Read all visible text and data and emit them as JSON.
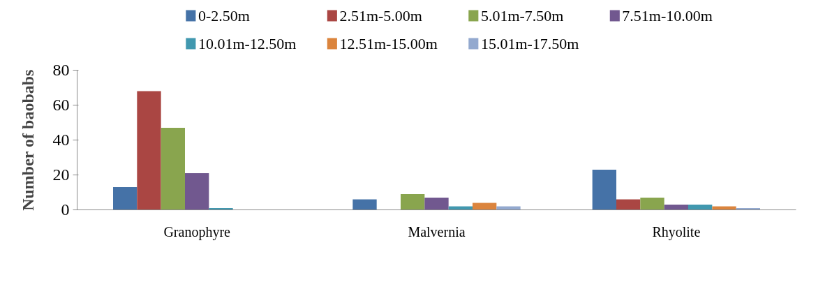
{
  "chart_data": {
    "type": "bar",
    "ylabel": "Number of baobabs",
    "categories": [
      "Granophyre",
      "Malvernia",
      "Rhyolite"
    ],
    "series": [
      {
        "name": "0-2.50m",
        "color": "#4572a7",
        "values": [
          13,
          6,
          23
        ]
      },
      {
        "name": "2.51m-5.00m",
        "color": "#aa4643",
        "values": [
          68,
          0,
          6
        ]
      },
      {
        "name": "5.01m-7.50m",
        "color": "#89a54e",
        "values": [
          47,
          9,
          7
        ]
      },
      {
        "name": "7.51m-10.00m",
        "color": "#71588f",
        "values": [
          21,
          7,
          3
        ]
      },
      {
        "name": "10.01m-12.50m",
        "color": "#4198af",
        "values": [
          1,
          2,
          3
        ]
      },
      {
        "name": "12.51m-15.00m",
        "color": "#db843d",
        "values": [
          0,
          4,
          2
        ]
      },
      {
        "name": "15.01m-17.50m",
        "color": "#93a9cf",
        "values": [
          0,
          2,
          1
        ]
      }
    ],
    "ylim": [
      0,
      80
    ],
    "yticks": [
      0,
      20,
      40,
      60,
      80
    ],
    "grid": false,
    "legend": "top"
  }
}
